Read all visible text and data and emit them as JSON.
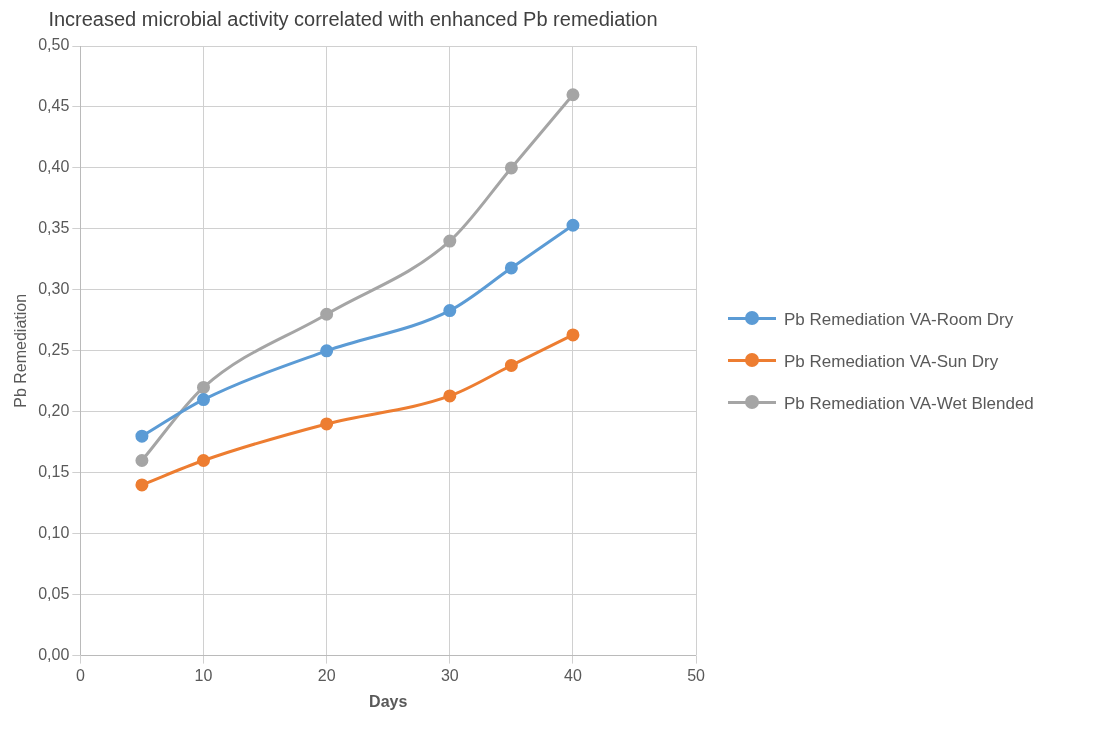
{
  "chart_data": {
    "type": "line",
    "title": "Increased microbial activity correlated with enhanced Pb remediation",
    "xlabel": "Days",
    "ylabel": "Pb Remediation",
    "x": [
      5,
      10,
      20,
      30,
      35,
      40
    ],
    "series": [
      {
        "name": "Pb Remediation VA-Room Dry",
        "color": "#5b9bd5",
        "values": [
          0.18,
          0.21,
          0.25,
          0.283,
          0.318,
          0.353
        ]
      },
      {
        "name": "Pb Remediation VA-Sun Dry",
        "color": "#ed7d31",
        "values": [
          0.14,
          0.16,
          0.19,
          0.213,
          0.238,
          0.263
        ]
      },
      {
        "name": "Pb Remediation VA-Wet Blended",
        "color": "#a5a5a5",
        "values": [
          0.16,
          0.22,
          0.28,
          0.34,
          0.4,
          0.46
        ]
      }
    ],
    "xlim": [
      0,
      50
    ],
    "xticks": [
      0,
      10,
      20,
      30,
      40,
      50
    ],
    "ylim": [
      0,
      0.5
    ],
    "yticks": [
      {
        "value": 0,
        "label": "0,00"
      },
      {
        "value": 0.05,
        "label": "0,05"
      },
      {
        "value": 0.1,
        "label": "0,10"
      },
      {
        "value": 0.15,
        "label": "0,15"
      },
      {
        "value": 0.2,
        "label": "0,20"
      },
      {
        "value": 0.25,
        "label": "0,25"
      },
      {
        "value": 0.3,
        "label": "0,30"
      },
      {
        "value": 0.35,
        "label": "0,35"
      },
      {
        "value": 0.4,
        "label": "0,40"
      },
      {
        "value": 0.45,
        "label": "0,45"
      },
      {
        "value": 0.5,
        "label": "0,50"
      }
    ],
    "grid": true,
    "legend": "right",
    "marker": "circle",
    "line_style": "solid"
  }
}
